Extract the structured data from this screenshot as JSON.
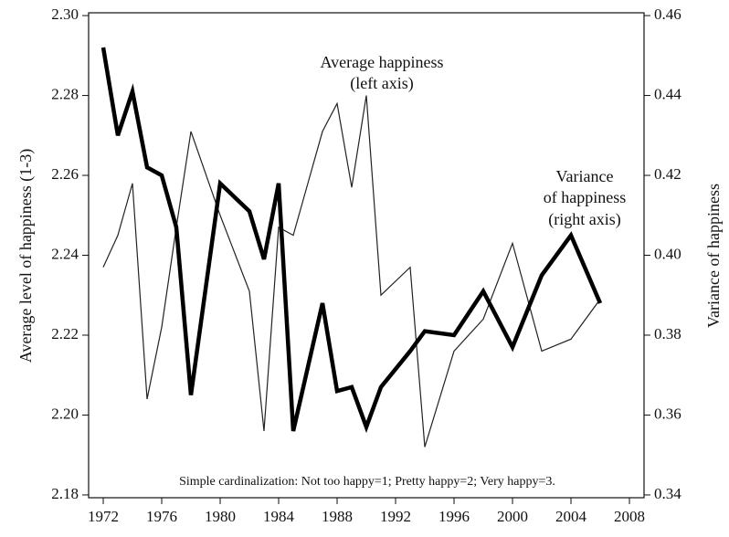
{
  "chart_data": {
    "type": "line",
    "y_label": "Average level of happiness (1-3)",
    "y2_label": "Variance of happiness",
    "annotations": [
      [
        "Average happiness",
        "(left axis)"
      ],
      [
        "Variance",
        "of happiness",
        "(right axis)"
      ]
    ],
    "note": "Simple cardinalization: Not too happy=1; Pretty happy=2; Very happy=3.",
    "x": [
      1972,
      1973,
      1974,
      1975,
      1976,
      1977,
      1978,
      1980,
      1982,
      1983,
      1984,
      1985,
      1986,
      1987,
      1988,
      1989,
      1990,
      1991,
      1993,
      1994,
      1996,
      1998,
      2000,
      2002,
      2004,
      2006
    ],
    "series": [
      {
        "color": "#222222",
        "width": 1.2,
        "values": [
          2.237,
          2.245,
          2.258,
          2.204,
          2.222,
          2.247,
          2.271,
          2.25,
          2.231,
          2.196,
          2.247,
          2.245,
          2.258,
          2.271,
          2.278,
          2.257,
          2.28,
          2.23,
          2.237,
          2.192,
          2.216,
          2.224,
          2.243,
          2.216,
          2.219,
          2.229
        ]
      },
      {
        "color": "#000000",
        "width": 4.5,
        "axis": "y2",
        "values": [
          0.452,
          0.43,
          0.441,
          0.422,
          0.42,
          0.407,
          0.365,
          0.418,
          0.411,
          0.399,
          0.418,
          0.356,
          0.372,
          0.388,
          0.366,
          0.367,
          0.357,
          0.367,
          0.376,
          0.381,
          0.38,
          0.391,
          0.377,
          0.395,
          0.405,
          0.388
        ]
      }
    ],
    "xlim": [
      1971,
      2009
    ],
    "xticks": [
      1972,
      1976,
      1980,
      1984,
      1988,
      1992,
      1996,
      2000,
      2004,
      2008
    ],
    "ylim": [
      2.1793,
      2.3007
    ],
    "yticks": [
      2.18,
      {
        "value": 2.2,
        "label": "2.20"
      },
      2.22,
      2.24,
      2.26,
      2.28,
      {
        "value": 2.3,
        "label": "2.30"
      }
    ],
    "y2lim": [
      0.3393,
      0.4607
    ],
    "y2ticks": [
      0.34,
      0.36,
      0.38,
      {
        "value": 0.4,
        "label": "0.40"
      },
      0.42,
      0.44,
      0.46
    ]
  }
}
